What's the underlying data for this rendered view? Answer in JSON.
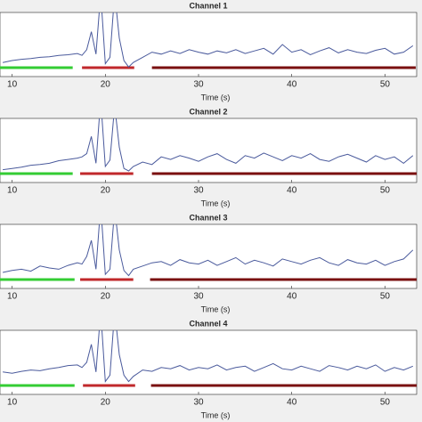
{
  "chart_data": [
    {
      "type": "line",
      "title": "Channel 1",
      "x_label": "Time (s)",
      "x": [
        9,
        10,
        11,
        12,
        13,
        14,
        15,
        16,
        17,
        17.5,
        18,
        18.5,
        19,
        19.5,
        20,
        20.5,
        21,
        21.5,
        22,
        22.5,
        23,
        24,
        25,
        26,
        27,
        28,
        29,
        30,
        31,
        32,
        33,
        34,
        35,
        36,
        37,
        38,
        39,
        40,
        41,
        42,
        43,
        44,
        45,
        46,
        47,
        48,
        49,
        50,
        51,
        52,
        53
      ],
      "series": [
        {
          "color": "#4a5a9c",
          "values": [
            0.22,
            0.25,
            0.27,
            0.28,
            0.3,
            0.31,
            0.33,
            0.34,
            0.36,
            0.33,
            0.42,
            0.7,
            0.35,
            1.3,
            0.2,
            0.3,
            1.3,
            0.6,
            0.25,
            0.15,
            0.22,
            0.3,
            0.38,
            0.35,
            0.4,
            0.36,
            0.42,
            0.38,
            0.35,
            0.4,
            0.37,
            0.42,
            0.36,
            0.4,
            0.44,
            0.35,
            0.5,
            0.38,
            0.42,
            0.34,
            0.4,
            0.45,
            0.37,
            0.42,
            0.38,
            0.36,
            0.41,
            0.44,
            0.35,
            0.38,
            0.48
          ]
        }
      ],
      "segments": [
        {
          "color": "#33cc33",
          "x": [
            8.7,
            16.5
          ]
        },
        {
          "color": "#c0282b",
          "x": [
            17.5,
            23.1
          ]
        },
        {
          "color": "#7a1010",
          "x": [
            25.0,
            53.3
          ]
        }
      ],
      "xlim": [
        8.7,
        53.4
      ],
      "xticks": [
        10,
        20,
        30,
        40,
        50
      ],
      "ylim": [
        0,
        1
      ]
    },
    {
      "type": "line",
      "title": "Channel 2",
      "x_label": "Time (s)",
      "x": [
        9,
        10,
        11,
        12,
        13,
        14,
        15,
        16,
        17,
        17.5,
        18,
        18.5,
        19,
        19.5,
        20,
        20.5,
        21,
        21.5,
        22,
        22.5,
        23,
        24,
        25,
        26,
        27,
        28,
        29,
        30,
        31,
        32,
        33,
        34,
        35,
        36,
        37,
        38,
        39,
        40,
        41,
        42,
        43,
        44,
        45,
        46,
        47,
        48,
        49,
        50,
        51,
        52,
        53
      ],
      "series": [
        {
          "color": "#4a5a9c",
          "values": [
            0.2,
            0.22,
            0.24,
            0.27,
            0.28,
            0.3,
            0.34,
            0.36,
            0.38,
            0.4,
            0.45,
            0.72,
            0.3,
            1.3,
            0.25,
            0.35,
            1.2,
            0.55,
            0.22,
            0.18,
            0.25,
            0.32,
            0.28,
            0.4,
            0.36,
            0.42,
            0.38,
            0.33,
            0.4,
            0.45,
            0.36,
            0.3,
            0.42,
            0.38,
            0.46,
            0.4,
            0.34,
            0.42,
            0.38,
            0.45,
            0.36,
            0.33,
            0.4,
            0.44,
            0.38,
            0.32,
            0.42,
            0.36,
            0.4,
            0.3,
            0.42
          ]
        }
      ],
      "segments": [
        {
          "color": "#33cc33",
          "x": [
            8.7,
            16.5
          ]
        },
        {
          "color": "#c0282b",
          "x": [
            17.3,
            23.0
          ]
        },
        {
          "color": "#7a1010",
          "x": [
            25.0,
            53.4
          ]
        }
      ],
      "xlim": [
        8.7,
        53.4
      ],
      "xticks": [
        10,
        20,
        30,
        40,
        50
      ],
      "ylim": [
        0,
        1
      ]
    },
    {
      "type": "line",
      "title": "Channel 3",
      "x_label": "Time (s)",
      "x": [
        9,
        10,
        11,
        12,
        13,
        14,
        15,
        16,
        17,
        17.5,
        18,
        18.5,
        19,
        19.5,
        20,
        20.5,
        21,
        21.5,
        22,
        22.5,
        23,
        24,
        25,
        26,
        27,
        28,
        29,
        30,
        31,
        32,
        33,
        34,
        35,
        36,
        37,
        38,
        39,
        40,
        41,
        42,
        43,
        44,
        45,
        46,
        47,
        48,
        49,
        50,
        51,
        52,
        53
      ],
      "series": [
        {
          "color": "#4a5a9c",
          "values": [
            0.25,
            0.28,
            0.3,
            0.27,
            0.35,
            0.32,
            0.3,
            0.36,
            0.4,
            0.38,
            0.5,
            0.75,
            0.3,
            1.3,
            0.22,
            0.3,
            1.25,
            0.6,
            0.28,
            0.2,
            0.3,
            0.35,
            0.4,
            0.42,
            0.36,
            0.45,
            0.4,
            0.38,
            0.44,
            0.36,
            0.42,
            0.48,
            0.38,
            0.44,
            0.4,
            0.35,
            0.46,
            0.42,
            0.38,
            0.44,
            0.48,
            0.4,
            0.36,
            0.45,
            0.4,
            0.38,
            0.44,
            0.36,
            0.42,
            0.46,
            0.6
          ]
        }
      ],
      "segments": [
        {
          "color": "#33cc33",
          "x": [
            8.7,
            16.7
          ]
        },
        {
          "color": "#c0282b",
          "x": [
            17.3,
            23.0
          ]
        },
        {
          "color": "#7a1010",
          "x": [
            24.8,
            53.4
          ]
        }
      ],
      "xlim": [
        8.7,
        53.4
      ],
      "xticks": [
        10,
        20,
        30,
        40,
        50
      ],
      "ylim": [
        0,
        1
      ]
    },
    {
      "type": "line",
      "title": "Channel 4",
      "x_label": "Time (s)",
      "x": [
        9,
        10,
        11,
        12,
        13,
        14,
        15,
        16,
        17,
        17.5,
        18,
        18.5,
        19,
        19.5,
        20,
        20.5,
        21,
        21.5,
        22,
        22.5,
        23,
        24,
        25,
        26,
        27,
        28,
        29,
        30,
        31,
        32,
        33,
        34,
        35,
        36,
        37,
        38,
        39,
        40,
        41,
        42,
        43,
        44,
        45,
        46,
        47,
        48,
        49,
        50,
        51,
        52,
        53
      ],
      "series": [
        {
          "color": "#4a5a9c",
          "values": [
            0.35,
            0.33,
            0.36,
            0.38,
            0.37,
            0.4,
            0.42,
            0.45,
            0.46,
            0.42,
            0.5,
            0.78,
            0.35,
            1.3,
            0.2,
            0.3,
            1.3,
            0.62,
            0.3,
            0.2,
            0.28,
            0.38,
            0.36,
            0.42,
            0.4,
            0.45,
            0.38,
            0.42,
            0.4,
            0.46,
            0.38,
            0.42,
            0.44,
            0.36,
            0.42,
            0.48,
            0.4,
            0.38,
            0.44,
            0.4,
            0.36,
            0.45,
            0.42,
            0.38,
            0.44,
            0.4,
            0.46,
            0.36,
            0.42,
            0.38,
            0.44
          ]
        }
      ],
      "segments": [
        {
          "color": "#33cc33",
          "x": [
            8.7,
            16.7
          ]
        },
        {
          "color": "#c0282b",
          "x": [
            17.6,
            23.2
          ]
        },
        {
          "color": "#7a1010",
          "x": [
            24.9,
            53.4
          ]
        }
      ],
      "xlim": [
        8.7,
        53.4
      ],
      "xticks": [
        10,
        20,
        30,
        40,
        50
      ],
      "ylim": [
        0,
        1
      ]
    }
  ]
}
